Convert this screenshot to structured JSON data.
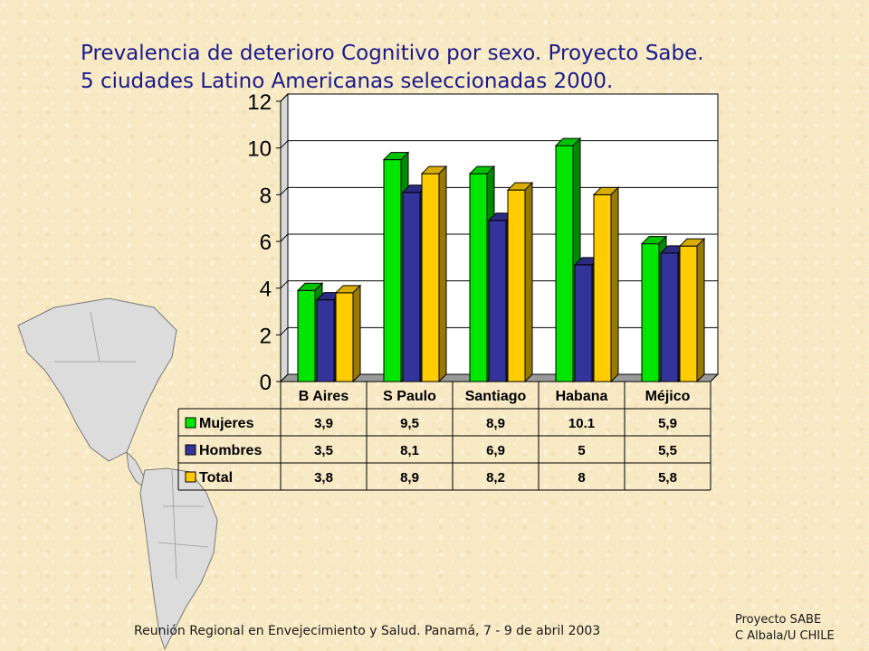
{
  "title": {
    "line1": "Prevalencia de deterioro Cognitivo por sexo. Proyecto Sabe.",
    "line2": "5 ciudades Latino Americanas seleccionadas 2000."
  },
  "footer": {
    "meeting": "Reunión Regional en Envejecimiento y Salud. Panamá, 7 - 9 de abril 2003",
    "credit_line1": "Proyecto SABE",
    "credit_line2": "C Albala/U CHILE"
  },
  "background_icon": "americas-map-icon",
  "chart_data": {
    "type": "bar",
    "style": "3d-clustered-with-data-table",
    "title": "",
    "xlabel": "",
    "ylabel": "",
    "categories": [
      "B Aires",
      "S Paulo",
      "Santiago",
      "Habana",
      "Méjico"
    ],
    "series": [
      {
        "name": "Mujeres",
        "values": [
          3.9,
          9.5,
          8.9,
          10.1,
          5.9
        ],
        "labels": [
          "3,9",
          "9,5",
          "8,9",
          "10.1",
          "5,9"
        ],
        "color": "#00e600"
      },
      {
        "name": "Hombres",
        "values": [
          3.5,
          8.1,
          6.9,
          5,
          5.5
        ],
        "labels": [
          "3,5",
          "8,1",
          "6,9",
          "5",
          "5,5"
        ],
        "color": "#333399"
      },
      {
        "name": "Total",
        "values": [
          3.8,
          8.9,
          8.2,
          8,
          5.8
        ],
        "labels": [
          "3,8",
          "8,9",
          "8,2",
          "8",
          "5,8"
        ],
        "color": "#ffcc00"
      }
    ],
    "ylim": [
      0,
      12
    ],
    "yticks": [
      0,
      2,
      4,
      6,
      8,
      10,
      12
    ],
    "grid": true,
    "legend": "data-table-rows"
  }
}
